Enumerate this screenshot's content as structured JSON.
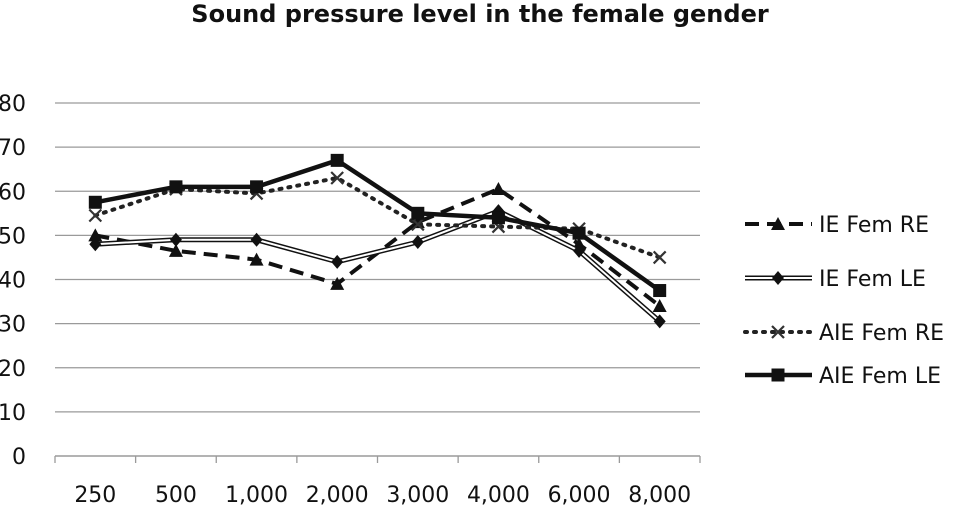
{
  "chart_data": {
    "type": "line",
    "title": "Sound pressure level in the female gender",
    "xlabel": "",
    "ylabel": "",
    "categories": [
      "250",
      "500",
      "1,000",
      "2,000",
      "3,000",
      "4,000",
      "6,000",
      "8,000"
    ],
    "ylim": [
      0,
      80
    ],
    "yticks": [
      "0",
      "10",
      "20",
      "30",
      "40",
      "50",
      "60",
      "70",
      "80"
    ],
    "grid": true,
    "legend_position": "right",
    "series": [
      {
        "name": "IE Fem RE",
        "values": [
          50,
          46.5,
          44.5,
          39,
          53,
          60.5,
          48,
          34
        ],
        "style": "dashed",
        "marker": "triangle",
        "color": "#111111"
      },
      {
        "name": "IE Fem LE",
        "values": [
          48,
          49,
          49,
          44,
          48.5,
          55.5,
          46.5,
          30.5
        ],
        "style": "double",
        "marker": "diamond",
        "color": "#111111"
      },
      {
        "name": "AIE Fem RE",
        "values": [
          54.5,
          60.5,
          59.5,
          63,
          52.5,
          52,
          51.5,
          45
        ],
        "style": "dotted",
        "marker": "x",
        "color": "#111111"
      },
      {
        "name": "AIE Fem LE",
        "values": [
          57.5,
          61,
          61,
          67,
          55,
          54,
          50.5,
          37.5
        ],
        "style": "solid",
        "marker": "square",
        "color": "#111111"
      }
    ]
  }
}
